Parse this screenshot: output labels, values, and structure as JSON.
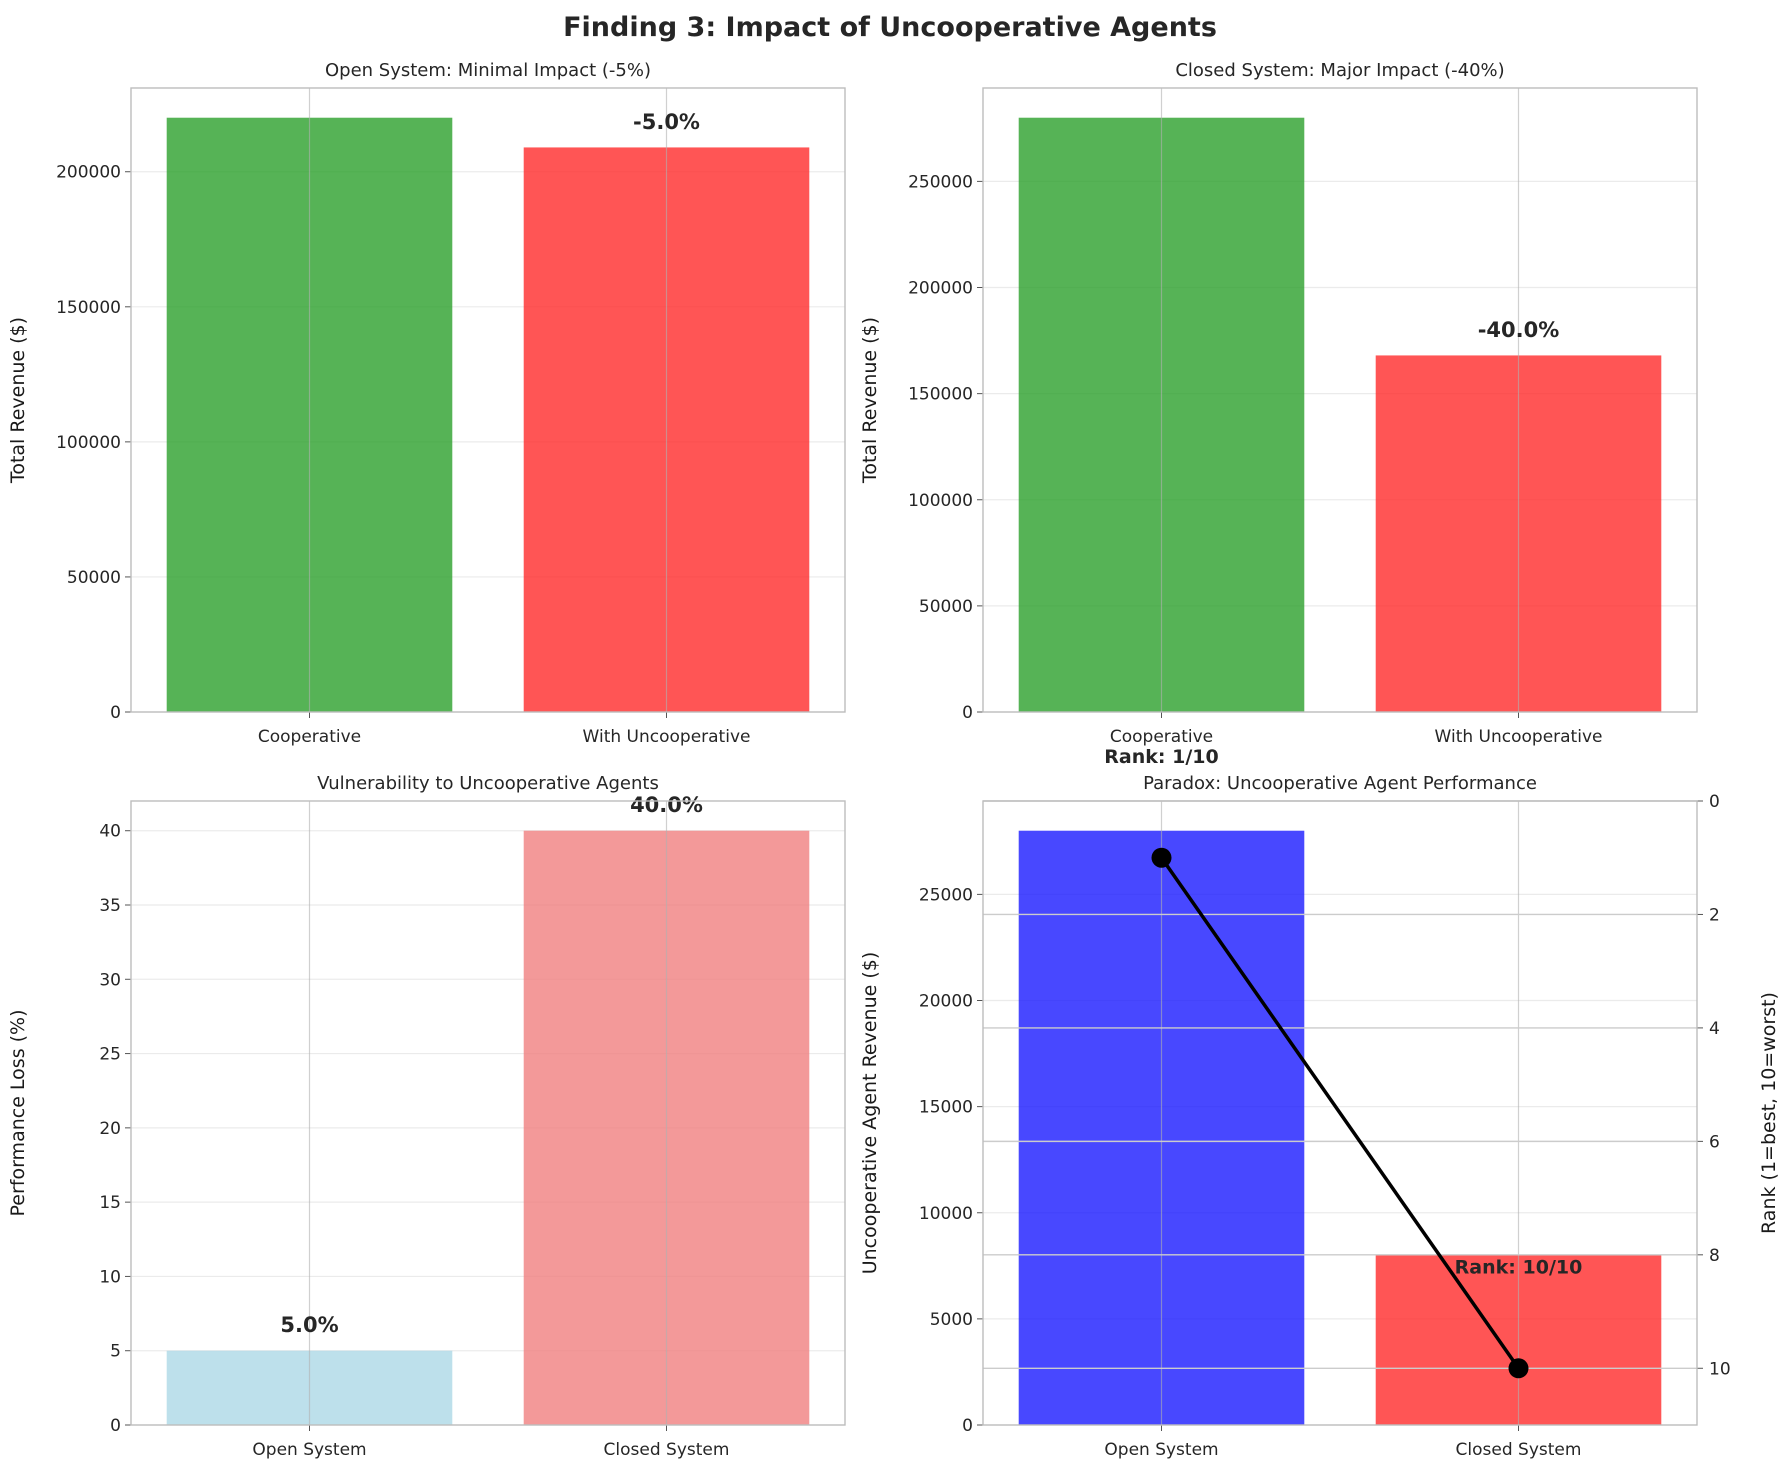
{
  "figure_title": "Finding 3: Impact of Uncooperative Agents",
  "chart_data": [
    {
      "type": "bar",
      "title": "Open System: Minimal Impact (-5%)",
      "categories": [
        "Cooperative",
        "With Uncooperative"
      ],
      "values": [
        220000,
        209000
      ],
      "colors": [
        "#2ca02c",
        "#ff2a2a"
      ],
      "bar_labels": [
        "",
        "-5.0%"
      ],
      "ylabel": "Total Revenue ($)",
      "xlabel": "",
      "ylim": [
        0,
        231000
      ],
      "yticks": [
        0,
        50000,
        100000,
        150000,
        200000
      ],
      "grid": true
    },
    {
      "type": "bar",
      "title": "Closed System: Major Impact (-40%)",
      "categories": [
        "Cooperative",
        "With Uncooperative"
      ],
      "values": [
        280000,
        168000
      ],
      "colors": [
        "#2ca02c",
        "#ff2a2a"
      ],
      "bar_labels": [
        "",
        "-40.0%"
      ],
      "ylabel": "Total Revenue ($)",
      "xlabel": "",
      "ylim": [
        0,
        294000
      ],
      "yticks": [
        0,
        50000,
        100000,
        150000,
        200000,
        250000
      ],
      "grid": true
    },
    {
      "type": "bar",
      "title": "Vulnerability to Uncooperative Agents",
      "categories": [
        "Open System",
        "Closed System"
      ],
      "values": [
        5.0,
        40.0
      ],
      "colors": [
        "#add8e6",
        "#f08080"
      ],
      "bar_labels": [
        "5.0%",
        "40.0%"
      ],
      "ylabel": "Performance Loss (%)",
      "xlabel": "",
      "ylim": [
        0,
        42
      ],
      "yticks": [
        0,
        5,
        10,
        15,
        20,
        25,
        30,
        35,
        40
      ],
      "grid": true
    },
    {
      "type": "bar",
      "title": "Paradox: Uncooperative Agent Performance",
      "categories": [
        "Open System",
        "Closed System"
      ],
      "values": [
        28000,
        8000
      ],
      "colors": [
        "#1a1aff",
        "#ff2a2a"
      ],
      "ylabel": "Uncooperative Agent Revenue ($)",
      "xlabel": "",
      "ylim": [
        0,
        29400
      ],
      "yticks": [
        0,
        5000,
        10000,
        15000,
        20000,
        25000
      ],
      "grid": true,
      "secondary": {
        "type": "line",
        "values": [
          1,
          10
        ],
        "point_labels": [
          "Rank: 1/10",
          "Rank: 10/10"
        ],
        "ylabel": "Rank (1=best, 10=worst)",
        "ylim": [
          11,
          0
        ],
        "yticks": [
          0,
          2,
          4,
          6,
          8,
          10
        ],
        "color": "#000000"
      }
    }
  ]
}
